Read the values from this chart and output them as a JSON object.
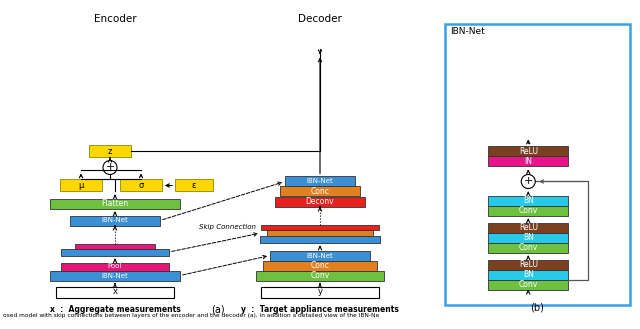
{
  "fig_width": 6.4,
  "fig_height": 3.29,
  "dpi": 100,
  "bg_color": "#ffffff",
  "encoder_title": "Encoder",
  "decoder_title": "Decoder",
  "ibn_net_title": "IBN-Net",
  "colors": {
    "yellow": "#FFD700",
    "green": "#6DC040",
    "blue": "#3B8FD4",
    "orange": "#E08020",
    "red": "#E82020",
    "pink": "#E8157A",
    "cyan": "#28C8E8",
    "brown": "#7B4020",
    "magenta": "#E8158A",
    "white": "#FFFFFF",
    "ibnbox": "#3B9FE8"
  },
  "panel_a_label": "(a)",
  "panel_b_label": "(b)",
  "x_label": "x  :  Aggregate measurements",
  "y_label": "y  :  Target appliance measurements",
  "skip_label": "Skip Connection"
}
